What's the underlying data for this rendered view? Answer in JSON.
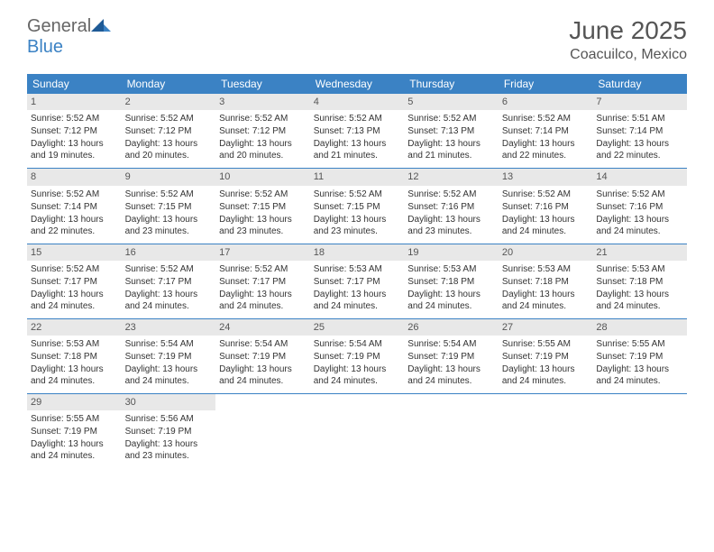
{
  "logo": {
    "general": "General",
    "blue": "Blue"
  },
  "title": "June 2025",
  "location": "Coacuilco, Mexico",
  "colors": {
    "header_bg": "#3b82c4",
    "header_text": "#ffffff",
    "daynum_bg": "#e8e8e8",
    "text": "#333333",
    "border": "#3b82c4",
    "background": "#ffffff"
  },
  "day_names": [
    "Sunday",
    "Monday",
    "Tuesday",
    "Wednesday",
    "Thursday",
    "Friday",
    "Saturday"
  ],
  "weeks": [
    [
      {
        "n": "1",
        "sr": "5:52 AM",
        "ss": "7:12 PM",
        "dl": "13 hours and 19 minutes."
      },
      {
        "n": "2",
        "sr": "5:52 AM",
        "ss": "7:12 PM",
        "dl": "13 hours and 20 minutes."
      },
      {
        "n": "3",
        "sr": "5:52 AM",
        "ss": "7:12 PM",
        "dl": "13 hours and 20 minutes."
      },
      {
        "n": "4",
        "sr": "5:52 AM",
        "ss": "7:13 PM",
        "dl": "13 hours and 21 minutes."
      },
      {
        "n": "5",
        "sr": "5:52 AM",
        "ss": "7:13 PM",
        "dl": "13 hours and 21 minutes."
      },
      {
        "n": "6",
        "sr": "5:52 AM",
        "ss": "7:14 PM",
        "dl": "13 hours and 22 minutes."
      },
      {
        "n": "7",
        "sr": "5:51 AM",
        "ss": "7:14 PM",
        "dl": "13 hours and 22 minutes."
      }
    ],
    [
      {
        "n": "8",
        "sr": "5:52 AM",
        "ss": "7:14 PM",
        "dl": "13 hours and 22 minutes."
      },
      {
        "n": "9",
        "sr": "5:52 AM",
        "ss": "7:15 PM",
        "dl": "13 hours and 23 minutes."
      },
      {
        "n": "10",
        "sr": "5:52 AM",
        "ss": "7:15 PM",
        "dl": "13 hours and 23 minutes."
      },
      {
        "n": "11",
        "sr": "5:52 AM",
        "ss": "7:15 PM",
        "dl": "13 hours and 23 minutes."
      },
      {
        "n": "12",
        "sr": "5:52 AM",
        "ss": "7:16 PM",
        "dl": "13 hours and 23 minutes."
      },
      {
        "n": "13",
        "sr": "5:52 AM",
        "ss": "7:16 PM",
        "dl": "13 hours and 24 minutes."
      },
      {
        "n": "14",
        "sr": "5:52 AM",
        "ss": "7:16 PM",
        "dl": "13 hours and 24 minutes."
      }
    ],
    [
      {
        "n": "15",
        "sr": "5:52 AM",
        "ss": "7:17 PM",
        "dl": "13 hours and 24 minutes."
      },
      {
        "n": "16",
        "sr": "5:52 AM",
        "ss": "7:17 PM",
        "dl": "13 hours and 24 minutes."
      },
      {
        "n": "17",
        "sr": "5:52 AM",
        "ss": "7:17 PM",
        "dl": "13 hours and 24 minutes."
      },
      {
        "n": "18",
        "sr": "5:53 AM",
        "ss": "7:17 PM",
        "dl": "13 hours and 24 minutes."
      },
      {
        "n": "19",
        "sr": "5:53 AM",
        "ss": "7:18 PM",
        "dl": "13 hours and 24 minutes."
      },
      {
        "n": "20",
        "sr": "5:53 AM",
        "ss": "7:18 PM",
        "dl": "13 hours and 24 minutes."
      },
      {
        "n": "21",
        "sr": "5:53 AM",
        "ss": "7:18 PM",
        "dl": "13 hours and 24 minutes."
      }
    ],
    [
      {
        "n": "22",
        "sr": "5:53 AM",
        "ss": "7:18 PM",
        "dl": "13 hours and 24 minutes."
      },
      {
        "n": "23",
        "sr": "5:54 AM",
        "ss": "7:19 PM",
        "dl": "13 hours and 24 minutes."
      },
      {
        "n": "24",
        "sr": "5:54 AM",
        "ss": "7:19 PM",
        "dl": "13 hours and 24 minutes."
      },
      {
        "n": "25",
        "sr": "5:54 AM",
        "ss": "7:19 PM",
        "dl": "13 hours and 24 minutes."
      },
      {
        "n": "26",
        "sr": "5:54 AM",
        "ss": "7:19 PM",
        "dl": "13 hours and 24 minutes."
      },
      {
        "n": "27",
        "sr": "5:55 AM",
        "ss": "7:19 PM",
        "dl": "13 hours and 24 minutes."
      },
      {
        "n": "28",
        "sr": "5:55 AM",
        "ss": "7:19 PM",
        "dl": "13 hours and 24 minutes."
      }
    ],
    [
      {
        "n": "29",
        "sr": "5:55 AM",
        "ss": "7:19 PM",
        "dl": "13 hours and 24 minutes."
      },
      {
        "n": "30",
        "sr": "5:56 AM",
        "ss": "7:19 PM",
        "dl": "13 hours and 23 minutes."
      },
      null,
      null,
      null,
      null,
      null
    ]
  ],
  "labels": {
    "sunrise": "Sunrise: ",
    "sunset": "Sunset: ",
    "daylight": "Daylight: "
  }
}
